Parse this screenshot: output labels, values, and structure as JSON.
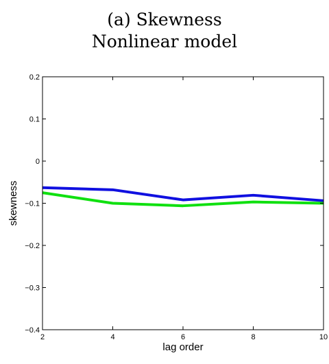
{
  "chart_data": {
    "type": "line",
    "title": "(a) Skewness",
    "subtitle": "Nonlinear model",
    "xlabel": "lag order",
    "ylabel": "skewness",
    "x": [
      2,
      4,
      6,
      8,
      10
    ],
    "xlim": [
      2,
      10
    ],
    "ylim": [
      -0.4,
      0.2
    ],
    "xticks": [
      2,
      4,
      6,
      8,
      10
    ],
    "yticks": [
      -0.4,
      -0.3,
      -0.2,
      -0.1,
      0,
      0.1,
      0.2
    ],
    "xtick_labels": [
      "2",
      "4",
      "6",
      "8",
      "10"
    ],
    "ytick_labels": [
      "−0.4",
      "−0.3",
      "−0.2",
      "−0.1",
      "0",
      "0.1",
      "0.2"
    ],
    "grid": false,
    "series": [
      {
        "color": "#1010e0",
        "values": [
          -0.063,
          -0.068,
          -0.092,
          -0.081,
          -0.094
        ]
      },
      {
        "color": "#10e010",
        "values": [
          -0.075,
          -0.1,
          -0.106,
          -0.097,
          -0.1
        ]
      }
    ]
  }
}
